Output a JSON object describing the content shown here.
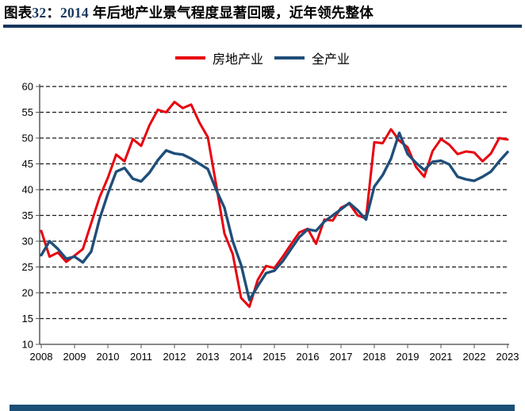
{
  "title": {
    "prefix": "图表",
    "number": "32",
    "colon": "：",
    "year": "2014",
    "rest": " 年后地产业景气程度显著回暖，近年领先整体"
  },
  "accent_colors": {
    "title_number_navy": "#17375e",
    "title_rule_navy": "#17375e",
    "footer_bar_navy": "#1b4f76"
  },
  "chart_data": {
    "type": "line",
    "title": "2014 年后地产业景气程度显著回暖，近年领先整体",
    "xlabel": "",
    "ylabel": "",
    "ylim": [
      10,
      60
    ],
    "ytick_interval": 5,
    "y_tick_labels": [
      "10",
      "15",
      "20",
      "25",
      "30",
      "35",
      "40",
      "45",
      "50",
      "55",
      "60"
    ],
    "x_tick_labels": [
      "2008",
      "2009",
      "2010",
      "2011",
      "2012",
      "2013",
      "2014",
      "2015",
      "2016",
      "2017",
      "2018",
      "2019",
      "2021",
      "2022",
      "2023"
    ],
    "grid": "horizontal-dashed",
    "legend_position": "top-center",
    "note_x_axis": "annual ticks, 2020 absent",
    "categories": [
      "2008Q1",
      "2008Q2",
      "2008Q3",
      "2008Q4",
      "2009Q1",
      "2009Q2",
      "2009Q3",
      "2009Q4",
      "2010Q1",
      "2010Q2",
      "2010Q3",
      "2010Q4",
      "2011Q1",
      "2011Q2",
      "2011Q3",
      "2011Q4",
      "2012Q1",
      "2012Q2",
      "2012Q3",
      "2012Q4",
      "2013Q1",
      "2013Q2",
      "2013Q3",
      "2013Q4",
      "2014Q1",
      "2014Q2",
      "2014Q3",
      "2014Q4",
      "2015Q1",
      "2015Q2",
      "2015Q3",
      "2015Q4",
      "2016Q1",
      "2016Q2",
      "2016Q3",
      "2016Q4",
      "2017Q1",
      "2017Q2",
      "2017Q3",
      "2017Q4",
      "2018Q1",
      "2018Q2",
      "2018Q3",
      "2018Q4",
      "2019Q1",
      "2019Q2",
      "2019Q3",
      "2019Q4",
      "2021Q1",
      "2021Q2",
      "2021Q3",
      "2021Q4",
      "2022Q1",
      "2022Q2",
      "2022Q3",
      "2022Q4",
      "2023Q1"
    ],
    "series": [
      {
        "name": "房地产业",
        "color": "#e8000d",
        "values": [
          32.0,
          27.0,
          27.8,
          26.0,
          27.2,
          28.5,
          33.5,
          38.5,
          42.3,
          46.8,
          45.5,
          49.8,
          48.5,
          52.5,
          55.5,
          55.0,
          57.0,
          55.8,
          56.5,
          53.0,
          50.2,
          41.0,
          31.5,
          27.5,
          19.0,
          17.3,
          22.5,
          25.2,
          24.8,
          27.0,
          29.4,
          31.7,
          32.4,
          29.5,
          34.2,
          34.0,
          36.5,
          37.3,
          35.0,
          34.4,
          49.2,
          49.0,
          51.7,
          49.5,
          48.2,
          44.4,
          42.5,
          47.5,
          49.8,
          48.7,
          46.9,
          47.4,
          47.2,
          45.5,
          47.0,
          50.0,
          49.7
        ]
      },
      {
        "name": "全产业",
        "color": "#1f4e79",
        "values": [
          27.3,
          30.0,
          28.5,
          26.6,
          27.0,
          25.9,
          28.0,
          34.3,
          39.2,
          43.5,
          44.2,
          42.1,
          41.6,
          43.3,
          45.7,
          47.6,
          47.0,
          46.8,
          46.0,
          45.0,
          44.0,
          40.0,
          36.5,
          30.0,
          25.4,
          18.6,
          21.3,
          23.8,
          24.3,
          26.1,
          28.5,
          30.8,
          32.3,
          32.0,
          33.8,
          35.0,
          36.2,
          37.4,
          36.0,
          34.2,
          40.6,
          42.8,
          46.0,
          51.0,
          46.9,
          45.2,
          43.8,
          45.4,
          45.6,
          44.9,
          42.5,
          42.0,
          41.7,
          42.5,
          43.5,
          45.5,
          47.3
        ]
      }
    ]
  }
}
